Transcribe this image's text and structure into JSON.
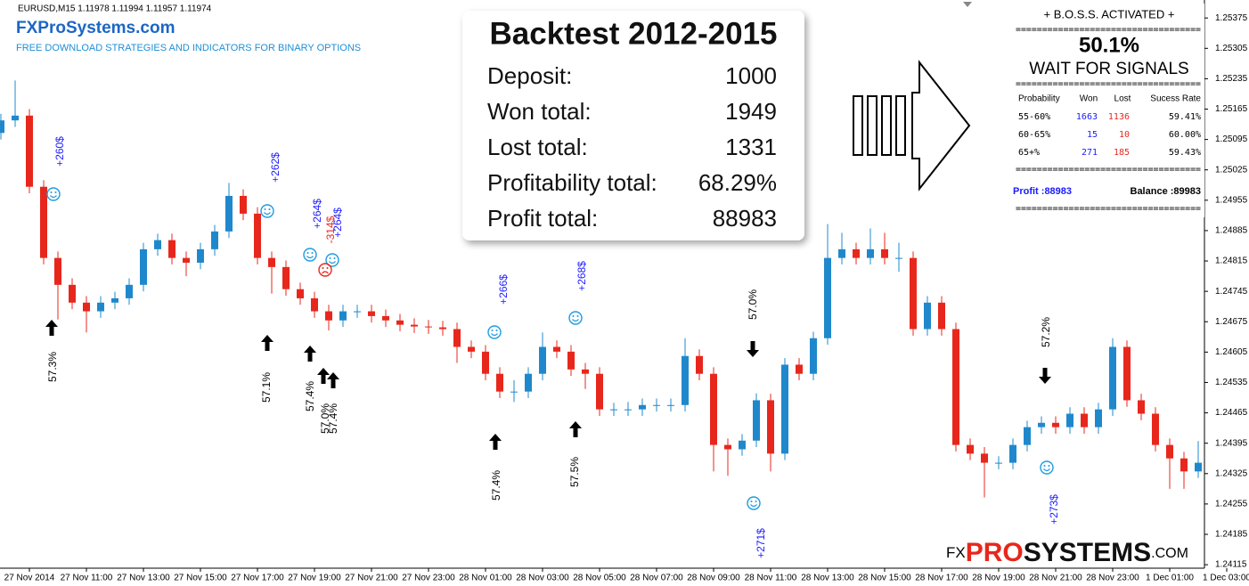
{
  "chart_data": {
    "type": "candlestick",
    "symbol_label": "EURUSD,M15  1.11978 1.11994 1.11957 1.11974",
    "categories": [
      null,
      null,
      "27 Nov 2014",
      null,
      null,
      null,
      "27 Nov 11:00",
      null,
      null,
      null,
      "27 Nov 13:00",
      null,
      null,
      null,
      "27 Nov 15:00",
      null,
      null,
      null,
      "27 Nov 17:00",
      null,
      null,
      null,
      "27 Nov 19:00",
      null,
      null,
      null,
      "27 Nov 21:00",
      null,
      null,
      null,
      "27 Nov 23:00",
      null,
      null,
      null,
      "28 Nov 01:00",
      null,
      null,
      null,
      "28 Nov 03:00",
      null,
      null,
      null,
      "28 Nov 05:00",
      null,
      null,
      null,
      "28 Nov 07:00",
      null,
      null,
      null,
      "28 Nov 09:00",
      null,
      null,
      null,
      "28 Nov 11:00",
      null,
      null,
      null,
      "28 Nov 13:00",
      null,
      null,
      null,
      "28 Nov 15:00",
      null,
      null,
      null,
      "28 Nov 17:00",
      null,
      null,
      null,
      "28 Nov 19:00",
      null,
      null,
      null,
      "28 Nov 21:00",
      null,
      null,
      null,
      "28 Nov 23:00",
      null,
      null,
      null,
      "1 Dec 01:00",
      null,
      null,
      null,
      "1 Dec 03:00"
    ],
    "open": [
      1.2511,
      1.25139,
      1.2515,
      1.24986,
      1.24822,
      1.2476,
      1.24719,
      1.24699,
      1.24719,
      1.24729,
      1.2476,
      1.24842,
      1.24863,
      1.24822,
      1.24811,
      1.24842,
      1.24883,
      1.24965,
      1.24924,
      1.24822,
      1.24801,
      1.2475,
      1.24729,
      1.24699,
      1.24678,
      1.24699,
      1.24699,
      1.24688,
      1.24678,
      1.24668,
      1.24664,
      1.24662,
      1.24658,
      1.24617,
      1.24606,
      1.24555,
      1.24514,
      1.24514,
      1.24555,
      1.24617,
      1.24606,
      1.24565,
      1.24555,
      1.24473,
      1.24473,
      1.24473,
      1.24483,
      1.24483,
      1.24483,
      1.24596,
      1.24555,
      1.24391,
      1.24381,
      1.24401,
      1.24494,
      1.24371,
      1.24576,
      1.24555,
      1.24637,
      1.24822,
      1.24842,
      1.24822,
      1.24842,
      1.24822,
      1.24822,
      1.24658,
      1.24719,
      1.24658,
      1.24391,
      1.24371,
      1.2435,
      1.2435,
      1.24391,
      1.24432,
      1.24442,
      1.24432,
      1.24463,
      1.24432,
      1.24473,
      1.24617,
      1.24494,
      1.24463,
      1.24391,
      1.2436,
      1.2433,
      null,
      null
    ],
    "high": [
      1.25154,
      1.25231,
      1.25165,
      1.25001,
      1.24837,
      1.24775,
      1.24734,
      1.24734,
      1.24744,
      1.24775,
      1.24857,
      1.24878,
      1.24878,
      1.24837,
      1.24857,
      1.24898,
      1.24995,
      1.2498,
      1.24939,
      1.24837,
      1.24816,
      1.24765,
      1.24744,
      1.24714,
      1.24714,
      1.24714,
      1.24714,
      1.24703,
      1.24693,
      1.24683,
      1.24679,
      1.24677,
      1.24673,
      1.24632,
      1.24621,
      1.2457,
      1.2454,
      1.2457,
      1.2465,
      1.24632,
      1.24621,
      1.2458,
      1.2457,
      1.24488,
      1.2449,
      1.24498,
      1.24498,
      1.24498,
      1.24637,
      1.24611,
      1.2457,
      1.24406,
      1.24416,
      1.2451,
      1.24509,
      1.24591,
      1.24591,
      1.24652,
      1.249,
      1.2488,
      1.24857,
      1.2489,
      1.2488,
      1.24857,
      1.24837,
      1.24734,
      1.24734,
      1.24673,
      1.24406,
      1.24386,
      1.24365,
      1.24406,
      1.24447,
      1.24457,
      1.24457,
      1.24478,
      1.24478,
      1.24488,
      1.24637,
      1.24632,
      1.24509,
      1.24478,
      1.24406,
      1.24375,
      1.244,
      null,
      null
    ],
    "low": [
      1.25095,
      1.25124,
      1.24971,
      1.24807,
      1.2468,
      1.24704,
      1.2465,
      1.24684,
      1.24704,
      1.24714,
      1.24745,
      1.24827,
      1.24807,
      1.2478,
      1.24796,
      1.24827,
      1.24868,
      1.24909,
      1.24807,
      1.2474,
      1.24735,
      1.24714,
      1.24684,
      1.24655,
      1.24663,
      1.24684,
      1.24673,
      1.24663,
      1.24653,
      1.24649,
      1.24647,
      1.24643,
      1.2458,
      1.24591,
      1.2454,
      1.24499,
      1.2449,
      1.24499,
      1.2454,
      1.24591,
      1.2455,
      1.2452,
      1.24458,
      1.24458,
      1.24458,
      1.24458,
      1.24468,
      1.24468,
      1.24468,
      1.2454,
      1.2433,
      1.2432,
      1.24366,
      1.24386,
      1.2433,
      1.24356,
      1.2454,
      1.2454,
      1.24622,
      1.24807,
      1.24807,
      1.24807,
      1.24807,
      1.2479,
      1.24643,
      1.24643,
      1.24643,
      1.24376,
      1.24356,
      1.2427,
      1.24335,
      1.24335,
      1.24376,
      1.24417,
      1.24417,
      1.24417,
      1.24417,
      1.24417,
      1.24458,
      1.24479,
      1.24448,
      1.24376,
      1.2429,
      1.2429,
      1.24315,
      null,
      null
    ],
    "close": [
      1.25139,
      1.2515,
      1.24986,
      1.24822,
      1.2476,
      1.24719,
      1.24699,
      1.24719,
      1.24729,
      1.2476,
      1.24842,
      1.24863,
      1.24822,
      1.24811,
      1.24842,
      1.24883,
      1.24965,
      1.24924,
      1.24822,
      1.24801,
      1.2475,
      1.24729,
      1.24699,
      1.24678,
      1.24699,
      1.24699,
      1.24688,
      1.24678,
      1.24668,
      1.24664,
      1.24662,
      1.24658,
      1.24617,
      1.24606,
      1.24555,
      1.24514,
      1.24514,
      1.24555,
      1.24617,
      1.24606,
      1.24565,
      1.24555,
      1.24473,
      1.24473,
      1.24473,
      1.24483,
      1.24483,
      1.24483,
      1.24596,
      1.24555,
      1.24391,
      1.24381,
      1.24401,
      1.24494,
      1.24371,
      1.24576,
      1.24555,
      1.24637,
      1.24822,
      1.24842,
      1.24822,
      1.24842,
      1.24822,
      1.24822,
      1.24658,
      1.24719,
      1.24658,
      1.24391,
      1.24371,
      1.2435,
      1.2435,
      1.24391,
      1.24432,
      1.24442,
      1.24432,
      1.24463,
      1.24432,
      1.24473,
      1.24617,
      1.24494,
      1.24463,
      1.24391,
      1.2436,
      1.2433,
      1.2435,
      null,
      null
    ],
    "up_color": "#1f88cc",
    "down_color": "#e8271c",
    "ylim": [
      1.24107,
      1.254
    ],
    "yticks": [
      1.24115,
      1.24185,
      1.24255,
      1.24325,
      1.24395,
      1.24465,
      1.24535,
      1.24605,
      1.24675,
      1.24745,
      1.24815,
      1.24885,
      1.24955,
      1.25025,
      1.25095,
      1.25165,
      1.25235,
      1.25305,
      1.25375
    ],
    "annotations": [
      {
        "text": "57.3%",
        "color": "#000000"
      },
      {
        "text": "+260$",
        "color": "#1a1aff"
      },
      {
        "text": "57.1%",
        "color": "#000000"
      },
      {
        "text": "+262$",
        "color": "#1a1aff"
      },
      {
        "text": "57.4%",
        "color": "#000000"
      },
      {
        "text": "+264$",
        "color": "#1a1aff"
      },
      {
        "text": "-314$",
        "color": "#e8271c"
      },
      {
        "text": "+264$",
        "color": "#1a1aff"
      },
      {
        "text": "57.0%",
        "color": "#000000"
      },
      {
        "text": "57.4%",
        "color": "#000000"
      },
      {
        "text": "+266$",
        "color": "#1a1aff"
      },
      {
        "text": "57.4%",
        "color": "#000000"
      },
      {
        "text": "+268$",
        "color": "#1a1aff"
      },
      {
        "text": "57.5%",
        "color": "#000000"
      },
      {
        "text": "57.0%",
        "color": "#000000"
      },
      {
        "text": "+271$",
        "color": "#1a1aff"
      },
      {
        "text": "57.2%",
        "color": "#000000"
      },
      {
        "text": "+273$",
        "color": "#1a1aff"
      }
    ]
  },
  "header": {
    "brand": "FXProSystems.com",
    "tagline": "FREE DOWNLOAD STRATEGIES AND INDICATORS FOR BINARY OPTIONS"
  },
  "backtest": {
    "title": "Backtest 2012-2015",
    "rows": [
      [
        "Deposit:",
        "1000"
      ],
      [
        "Won total:",
        "1949"
      ],
      [
        "Lost total:",
        "1331"
      ],
      [
        "Profitability total:",
        "68.29%"
      ],
      [
        "Profit total:",
        "88983"
      ]
    ]
  },
  "boss_panel": {
    "title": "+ B.O.S.S. ACTIVATED +",
    "separator": "===================================",
    "rate": "50.1%",
    "status": "WAIT FOR SIGNALS",
    "columns": [
      "Probability",
      "Won",
      "Lost",
      "Sucess Rate"
    ],
    "rows": [
      [
        "55-60%",
        "1663",
        "1136",
        "59.41%"
      ],
      [
        "60-65%",
        "15",
        "10",
        "60.00%"
      ],
      [
        "65+%",
        "271",
        "185",
        "59.43%"
      ]
    ],
    "profit": "Profit :88983",
    "balance": "Balance :89983"
  },
  "footer_logo": {
    "prefix": "FX",
    "accent": "PRO",
    "main": "SYSTEMS",
    "suffix": ".COM"
  }
}
